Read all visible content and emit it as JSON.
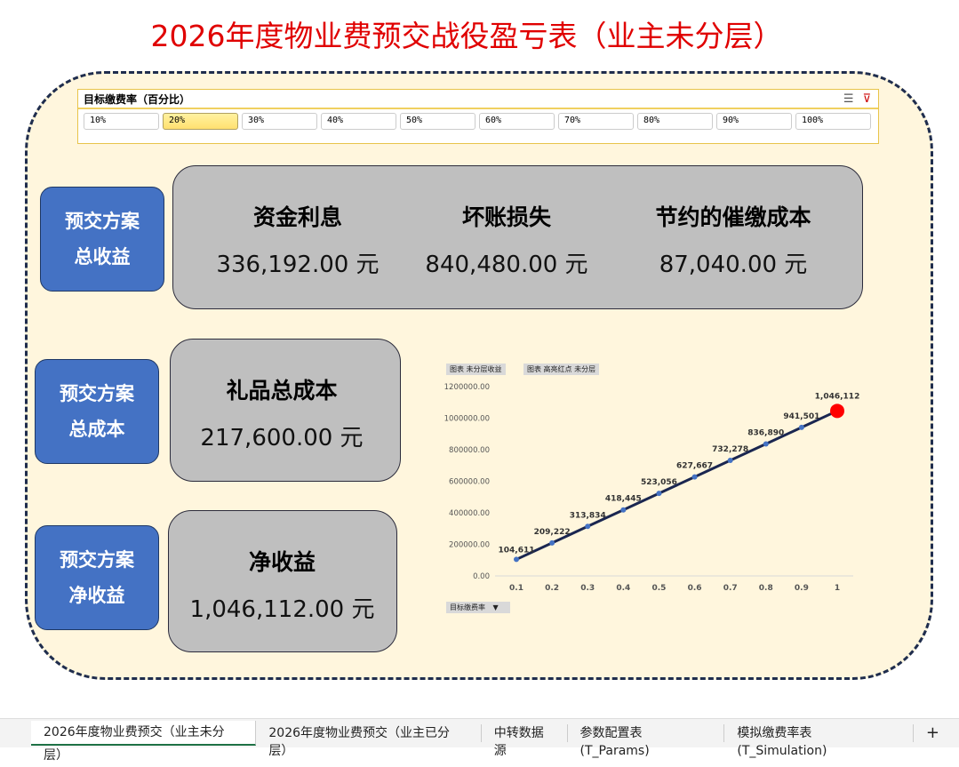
{
  "title": "2026年度物业费预交战役盈亏表（业主未分层）",
  "slicer": {
    "title": "目标缴费率（百分比）",
    "icons": [
      "multi-select-icon",
      "clear-filter-icon"
    ],
    "items": [
      "10%",
      "20%",
      "30%",
      "40%",
      "50%",
      "60%",
      "70%",
      "80%",
      "90%",
      "100%"
    ],
    "selected": "20%"
  },
  "revenue": {
    "label_line1": "预交方案",
    "label_line2": "总收益",
    "metrics": [
      {
        "label": "资金利息",
        "value": "336,192.00 元"
      },
      {
        "label": "坏账损失",
        "value": "840,480.00 元"
      },
      {
        "label": "节约的催缴成本",
        "value": "87,040.00 元"
      }
    ]
  },
  "cost": {
    "label_line1": "预交方案",
    "label_line2": "总成本",
    "metric": {
      "label": "礼品总成本",
      "value": "217,600.00 元"
    }
  },
  "net": {
    "label_line1": "预交方案",
    "label_line2": "净收益",
    "metric": {
      "label": "净收益",
      "value": "1,046,112.00 元"
    }
  },
  "chart_buttons": [
    "图表 未分层收益",
    "图表 高亮红点 未分层"
  ],
  "chart_filter": "目标缴费率",
  "chart_data": {
    "type": "line",
    "x": [
      0.1,
      0.2,
      0.3,
      0.4,
      0.5,
      0.6,
      0.7,
      0.8,
      0.9,
      1
    ],
    "x_tick_labels": [
      "0.1",
      "0.2",
      "0.3",
      "0.4",
      "0.5",
      "0.6",
      "0.7",
      "0.8",
      "0.9",
      "1"
    ],
    "values": [
      104611,
      209222,
      313834,
      418445,
      523056,
      627667,
      732278,
      836890,
      941501,
      1046112
    ],
    "data_labels": [
      "104,611",
      "209,222",
      "313,834",
      "418,445",
      "523,056",
      "627,667",
      "732,278",
      "836,890",
      "941,501",
      "1,046,112"
    ],
    "ylim": [
      0,
      1200000
    ],
    "y_tick_labels": [
      "0.00",
      "200000.00",
      "400000.00",
      "600000.00",
      "800000.00",
      "1000000.00",
      "1200000.00"
    ],
    "highlight_index": 9,
    "line_color": "#1a2650",
    "marker_color": "#4472c4",
    "highlight_color": "#ff0000",
    "grid": false
  },
  "tabs": [
    "2026年度物业费预交（业主未分层）",
    "2026年度物业费预交（业主已分层）",
    "中转数据源",
    "参数配置表 (T_Params)",
    "模拟缴费率表 (T_Simulation)"
  ],
  "add_tab": "+"
}
